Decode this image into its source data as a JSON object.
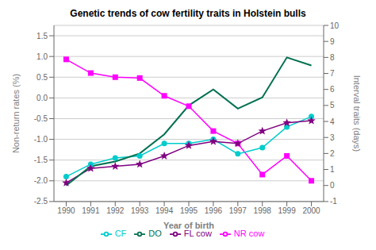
{
  "chart_data": {
    "type": "line",
    "title": "Genetic trends of cow fertility traits in Holstein bulls",
    "xlabel": "Year of birth",
    "ylabel": "Non-return rates (%)",
    "y2label": "Interval traits (days)",
    "x": [
      1990,
      1991,
      1992,
      1993,
      1994,
      1995,
      1996,
      1997,
      1998,
      1999,
      2000
    ],
    "xlim": [
      1989.5,
      2000.5
    ],
    "xticks": [
      1990,
      1991,
      1992,
      1993,
      1994,
      1995,
      1996,
      1997,
      1998,
      1999,
      2000
    ],
    "ylim": [
      -2.5,
      1.75
    ],
    "yticks": [
      -2.5,
      {
        "value": -2.0,
        "label": "-2.0"
      },
      -1.5,
      {
        "value": -1.0,
        "label": "-1.0"
      },
      -0.5,
      {
        "value": 0.0,
        "label": "0.0"
      },
      0.5,
      {
        "value": 1.0,
        "label": "1.0"
      },
      1.5
    ],
    "y2lim": [
      -1,
      10
    ],
    "y2ticks": [
      -1,
      0,
      1,
      2,
      3,
      4,
      5,
      6,
      7,
      8,
      9,
      10
    ],
    "grid": true,
    "legend": "bottom",
    "series": [
      {
        "name": "NR cow",
        "color": "#ff00ff",
        "marker": "square",
        "values": [
          0.93,
          0.6,
          0.5,
          0.48,
          0.05,
          -0.2,
          -0.8,
          -1.1,
          -1.85,
          -1.4,
          -2.0
        ]
      },
      {
        "name": "CF",
        "color": "#00cccc",
        "marker": "circle",
        "values": [
          -1.9,
          -1.6,
          -1.45,
          -1.4,
          -1.1,
          -1.1,
          -1.0,
          -1.35,
          -1.2,
          -0.7,
          -0.45
        ]
      },
      {
        "name": "FL cow",
        "color": "#800080",
        "marker": "star",
        "values": [
          -2.05,
          -1.7,
          -1.65,
          -1.6,
          -1.4,
          -1.15,
          -1.05,
          -1.1,
          -0.8,
          -0.6,
          -0.55
        ]
      },
      {
        "name": "DO",
        "color": "#007050",
        "axis": "y2",
        "values": [
          0.0,
          1.2,
          1.5,
          2.0,
          3.2,
          5.0,
          6.0,
          4.8,
          5.5,
          8.0,
          7.5
        ]
      }
    ]
  }
}
